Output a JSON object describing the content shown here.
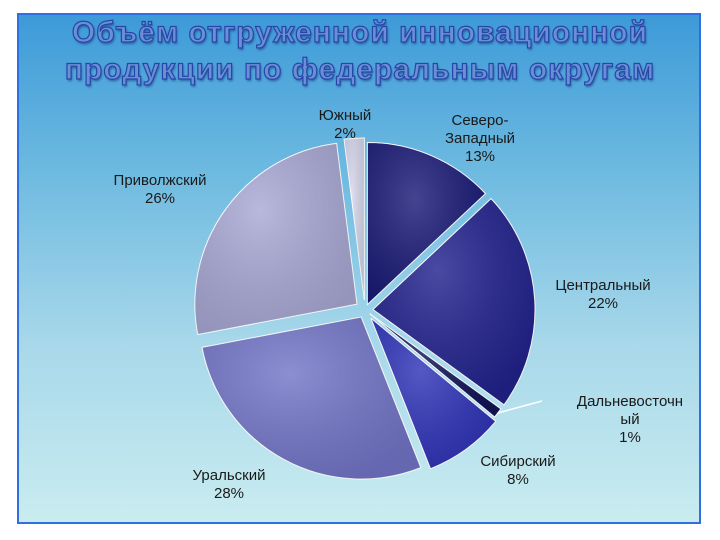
{
  "title_lines": [
    "Объём отгруженной инновационной",
    "продукции по федеральным округам"
  ],
  "chart_data": {
    "type": "pie",
    "title": "Объём отгруженной инновационной продукции по федеральным округам",
    "start_angle_deg": 0,
    "slices": [
      {
        "label_lines": [
          "Северо-",
          "Западный"
        ],
        "value": 13,
        "value_text": "13%",
        "color": "#1b1b78"
      },
      {
        "label_lines": [
          "Центральный"
        ],
        "value": 22,
        "value_text": "22%",
        "color": "#22228e"
      },
      {
        "label_lines": [
          "Дальневосточн",
          "ый"
        ],
        "value": 1,
        "value_text": "1%",
        "color": "#14145a"
      },
      {
        "label_lines": [
          "Сибирский"
        ],
        "value": 8,
        "value_text": "8%",
        "color": "#2f34b8"
      },
      {
        "label_lines": [
          "Уральский"
        ],
        "value": 28,
        "value_text": "28%",
        "color": "#7376c8"
      },
      {
        "label_lines": [
          "Приволжский"
        ],
        "value": 26,
        "value_text": "26%",
        "color": "#a9a9d6"
      },
      {
        "label_lines": [
          "Южный"
        ],
        "value": 2,
        "value_text": "2%",
        "color": "#d6d6ec"
      }
    ]
  }
}
